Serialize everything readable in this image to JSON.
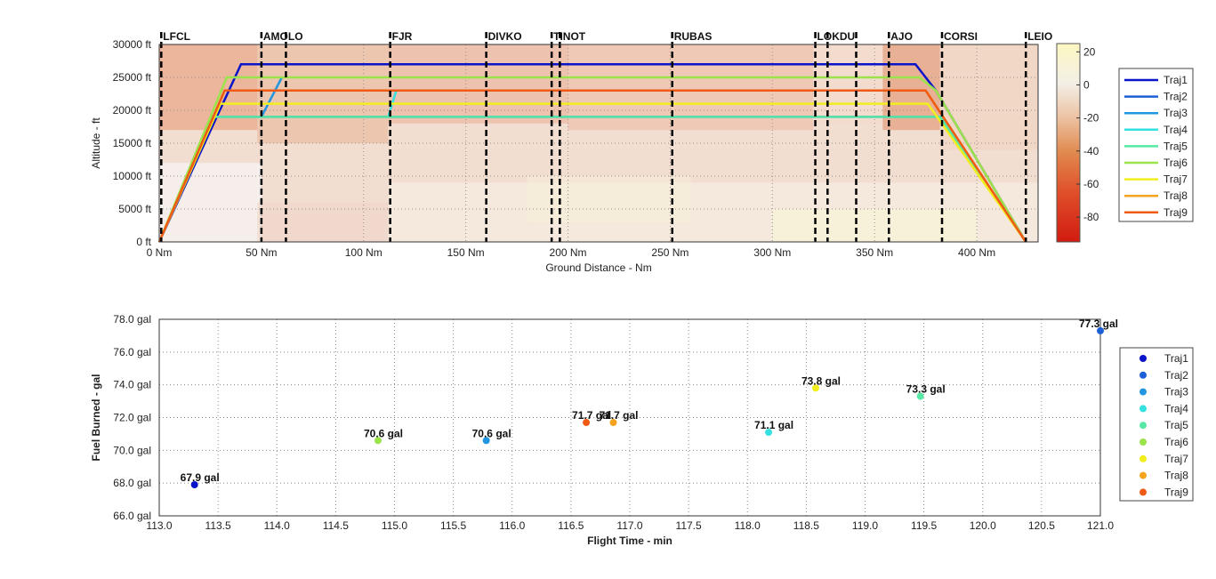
{
  "chart_data": [
    {
      "type": "line",
      "xlabel": "Ground Distance - Nm",
      "ylabel": "Altitude - ft",
      "xlim": [
        0,
        430
      ],
      "ylim": [
        0,
        30000
      ],
      "x_ticks": [
        0,
        50,
        100,
        150,
        200,
        250,
        300,
        350,
        400
      ],
      "x_tick_labels": [
        "0 Nm",
        "50 Nm",
        "100 Nm",
        "150 Nm",
        "200 Nm",
        "250 Nm",
        "300 Nm",
        "350 Nm",
        "400 Nm"
      ],
      "y_ticks": [
        0,
        5000,
        10000,
        15000,
        20000,
        25000,
        30000
      ],
      "y_tick_labels": [
        "0 ft",
        "5000 ft",
        "10000 ft",
        "15000 ft",
        "20000 ft",
        "25000 ft",
        "30000 ft"
      ],
      "waypoints": [
        {
          "name": "LFCL",
          "x": 1
        },
        {
          "name": "AMOLO",
          "x": 50
        },
        {
          "name": "",
          "x": 62
        },
        {
          "name": "FJR",
          "x": 113
        },
        {
          "name": "DIVKO",
          "x": 160
        },
        {
          "name": "TINOT",
          "x": 192
        },
        {
          "name": "",
          "x": 196
        },
        {
          "name": "RUBAS",
          "x": 251
        },
        {
          "name": "LOKDU",
          "x": 321
        },
        {
          "name": "",
          "x": 327
        },
        {
          "name": "",
          "x": 341
        },
        {
          "name": "AJO",
          "x": 357
        },
        {
          "name": "CORSI",
          "x": 383
        },
        {
          "name": "LEIO",
          "x": 424
        }
      ],
      "colorbar": {
        "range": [
          -95,
          25
        ],
        "ticks": [
          20,
          0,
          -20,
          -40,
          -60,
          -80
        ],
        "tick_labels": [
          "20",
          "0",
          "-20",
          "-40",
          "-60",
          "-80"
        ]
      },
      "legend_position": "right",
      "series": [
        {
          "name": "Traj1",
          "color": "#0a14c8",
          "x": [
            0,
            40,
            370,
            380,
            424
          ],
          "y": [
            0,
            27000,
            27000,
            23000,
            0
          ]
        },
        {
          "name": "Traj2",
          "color": "#1c5fd6",
          "x": [
            0,
            26,
            112,
            113,
            382,
            424
          ],
          "y": [
            0,
            19000,
            19000,
            19000,
            19000,
            0
          ]
        },
        {
          "name": "Traj3",
          "color": "#2196e0",
          "x": [
            50,
            60
          ],
          "y": [
            19000,
            25000
          ]
        },
        {
          "name": "Traj4",
          "color": "#35e0e0",
          "x": [
            112,
            116
          ],
          "y": [
            19000,
            23000
          ]
        },
        {
          "name": "Traj5",
          "color": "#56e8a4",
          "x": [
            0,
            26,
            112,
            113,
            382,
            424
          ],
          "y": [
            0,
            19000,
            19000,
            19000,
            19000,
            0
          ]
        },
        {
          "name": "Traj6",
          "color": "#9be34a",
          "x": [
            0,
            33,
            372,
            380,
            424
          ],
          "y": [
            0,
            25000,
            25000,
            23000,
            0
          ]
        },
        {
          "name": "Traj7",
          "color": "#f2ee1e",
          "x": [
            0,
            30,
            376,
            424
          ],
          "y": [
            0,
            21000,
            21000,
            0
          ]
        },
        {
          "name": "Traj8",
          "color": "#f5a31c",
          "x": [
            0,
            32,
            375,
            424
          ],
          "y": [
            0,
            23000,
            23000,
            0
          ]
        },
        {
          "name": "Traj9",
          "color": "#ef5a14",
          "x": [
            0,
            32,
            375,
            424
          ],
          "y": [
            0,
            23000,
            23000,
            0
          ]
        }
      ]
    },
    {
      "type": "scatter",
      "xlabel": "Flight Time - min",
      "ylabel": "Fuel Burned - gal",
      "xlim": [
        113.0,
        121.0
      ],
      "ylim": [
        66.0,
        78.0
      ],
      "x_ticks": [
        113.0,
        113.5,
        114.0,
        114.5,
        115.0,
        115.5,
        116.0,
        116.5,
        117.0,
        117.5,
        118.0,
        118.5,
        119.0,
        119.5,
        120.0,
        120.5,
        121.0
      ],
      "x_tick_labels": [
        "113.0",
        "113.5",
        "114.0",
        "114.5",
        "115.0",
        "115.5",
        "116.0",
        "116.5",
        "117.0",
        "117.5",
        "118.0",
        "118.5",
        "119.0",
        "119.5",
        "120.0",
        "120.5",
        "121.0"
      ],
      "y_ticks": [
        66,
        68,
        70,
        72,
        74,
        76,
        78
      ],
      "y_tick_labels": [
        "66.0 gal",
        "68.0 gal",
        "70.0 gal",
        "72.0 gal",
        "74.0 gal",
        "76.0 gal",
        "78.0 gal"
      ],
      "legend_position": "right",
      "series": [
        {
          "name": "Traj1",
          "color": "#0a14c8",
          "x": 113.3,
          "y": 67.9,
          "label": "67.9 gal"
        },
        {
          "name": "Traj2",
          "color": "#1c5fd6",
          "x": 121.0,
          "y": 77.3,
          "label": "77.3 gal"
        },
        {
          "name": "Traj3",
          "color": "#2196e0",
          "x": 115.78,
          "y": 70.6,
          "label": "70.6 gal"
        },
        {
          "name": "Traj4",
          "color": "#35e0e0",
          "x": 118.18,
          "y": 71.1,
          "label": "71.1 gal"
        },
        {
          "name": "Traj5",
          "color": "#56e8a4",
          "x": 119.47,
          "y": 73.3,
          "label": "73.3 gal"
        },
        {
          "name": "Traj6",
          "color": "#9be34a",
          "x": 114.86,
          "y": 70.6,
          "label": "70.6 gal"
        },
        {
          "name": "Traj7",
          "color": "#f2ee1e",
          "x": 118.58,
          "y": 73.8,
          "label": "73.8 gal"
        },
        {
          "name": "Traj8",
          "color": "#f5a31c",
          "x": 116.86,
          "y": 71.7,
          "label": "71.7 gal"
        },
        {
          "name": "Traj9",
          "color": "#ef5a14",
          "x": 116.63,
          "y": 71.7,
          "label": "71.7 gal"
        }
      ]
    }
  ]
}
